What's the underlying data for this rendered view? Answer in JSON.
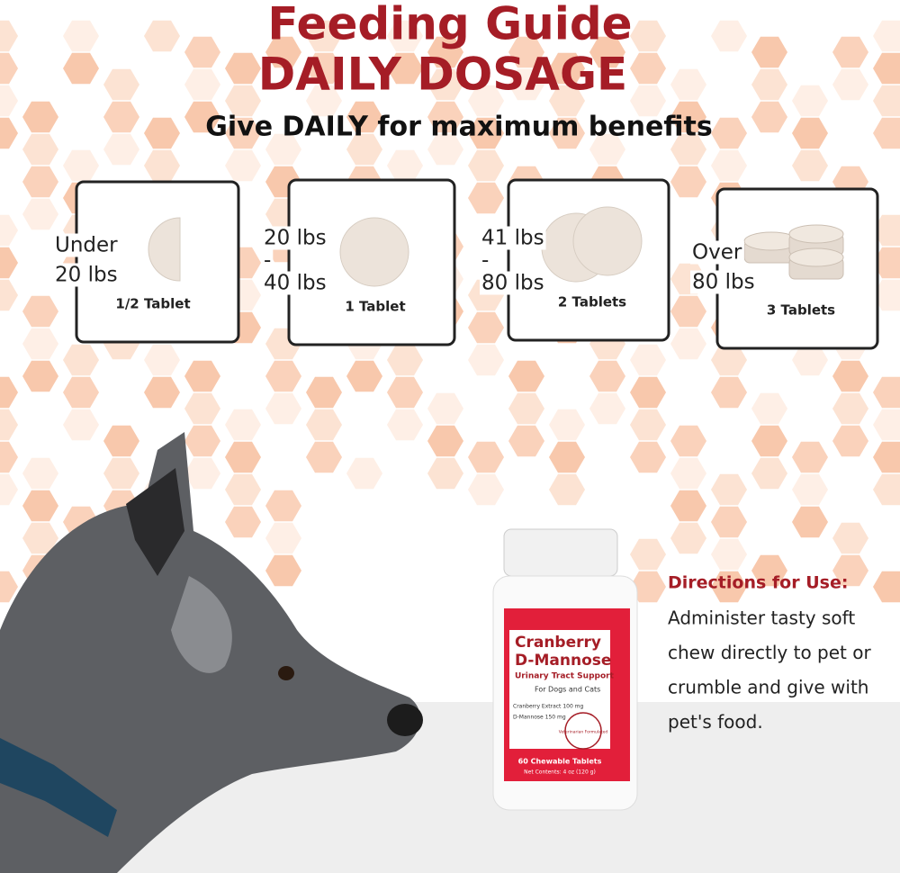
{
  "header": {
    "title": "Feeding Guide",
    "subtitle": "DAILY DOSAGE",
    "tagline": "Give DAILY for maximum benefits"
  },
  "dosages": [
    {
      "weight": [
        "Under",
        "20 lbs"
      ],
      "amount": "1/2 Tablet"
    },
    {
      "weight": [
        "20 lbs",
        "-",
        "40 lbs"
      ],
      "amount": "1 Tablet"
    },
    {
      "weight": [
        "41 lbs",
        "-",
        "80 lbs"
      ],
      "amount": "2 Tablets"
    },
    {
      "weight": [
        "Over",
        "80 lbs"
      ],
      "amount": "3 Tablets"
    }
  ],
  "product": {
    "name": [
      "Cranberry",
      "D-Mannose"
    ],
    "purpose": "Urinary Tract Support",
    "audience": "For Dogs and Cats",
    "ingredients": [
      "Cranberry Extract 100 mg",
      "D-Mannose 150 mg"
    ],
    "seal": "Veterinarian Formulated",
    "count": "60 Chewable Tablets",
    "net": "Net Contents: 4 oz (120 g)"
  },
  "directions": {
    "heading": "Directions for Use:",
    "lines": [
      "Administer tasty soft",
      "chew directly to pet or",
      "crumble and give with",
      "pet's food."
    ]
  }
}
